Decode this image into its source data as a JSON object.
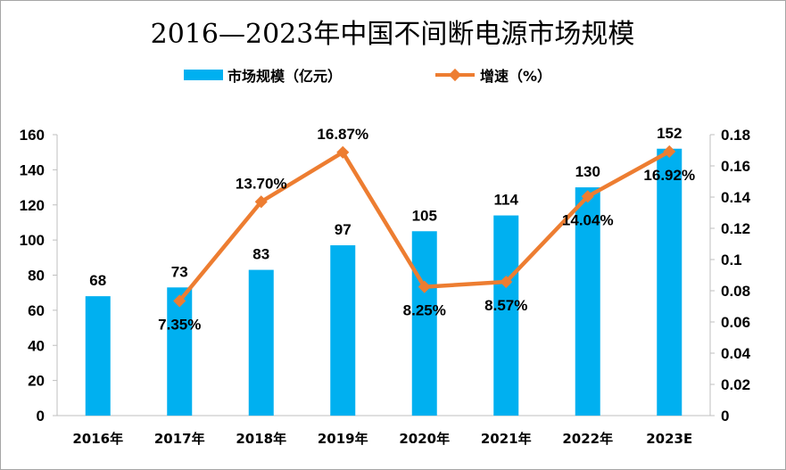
{
  "chart_data": {
    "type": "bar",
    "title": "2016—2023年中国不间断电源市场规模",
    "categories": [
      "2016年",
      "2017年",
      "2018年",
      "2019年",
      "2020年",
      "2021年",
      "2022年",
      "2023E"
    ],
    "series": [
      {
        "name": "市场规模（亿元）",
        "type": "bar",
        "axis": "left",
        "color": "#00b0f0",
        "values": [
          68,
          73,
          83,
          97,
          105,
          114,
          130,
          152
        ],
        "labels": [
          "68",
          "73",
          "83",
          "97",
          "105",
          "114",
          "130",
          "152"
        ]
      },
      {
        "name": "增速（%）",
        "type": "line",
        "axis": "right",
        "color": "#ed7d31",
        "values": [
          null,
          0.0735,
          0.137,
          0.1687,
          0.0825,
          0.0857,
          0.1404,
          0.1692
        ],
        "labels": [
          "",
          "7.35%",
          "13.70%",
          "16.87%",
          "8.25%",
          "8.57%",
          "14.04%",
          "16.92%"
        ]
      }
    ],
    "y_left": {
      "ylim": [
        0,
        160
      ],
      "ticks": [
        "0",
        "20",
        "40",
        "60",
        "80",
        "100",
        "120",
        "140",
        "160"
      ]
    },
    "y_right": {
      "ylim": [
        0,
        0.18
      ],
      "ticks": [
        "0",
        "0.02",
        "0.04",
        "0.06",
        "0.08",
        "0.1",
        "0.12",
        "0.14",
        "0.16",
        "0.18"
      ]
    },
    "grid": false,
    "legend": "top-center"
  }
}
